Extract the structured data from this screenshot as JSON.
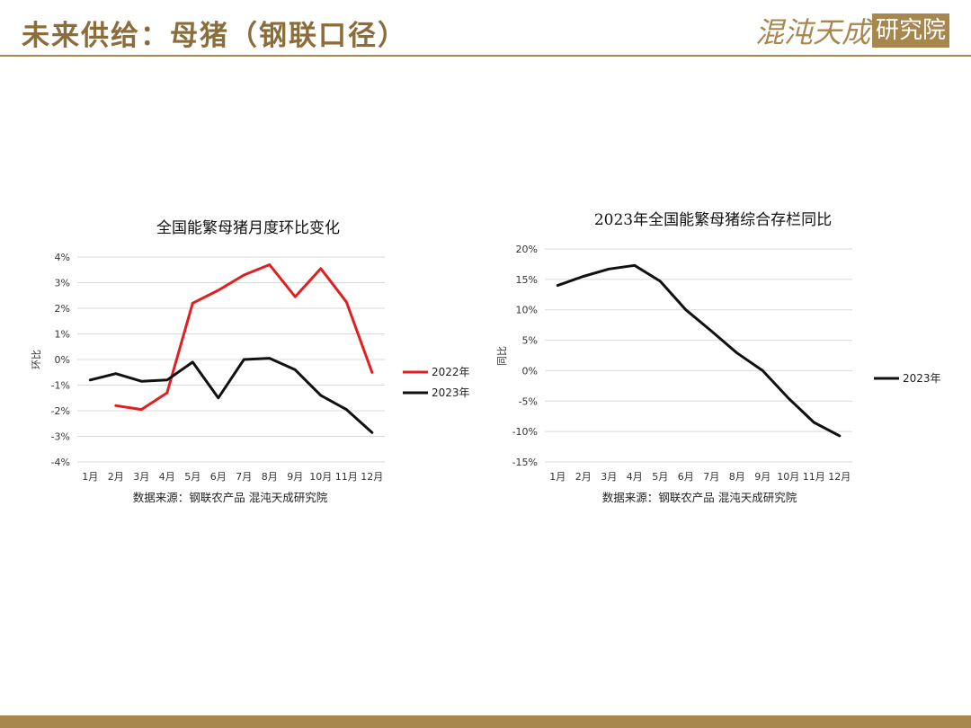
{
  "header": {
    "title": "未来供给：母猪（钢联口径）",
    "brand_name": "混沌天成",
    "brand_box": "研究院"
  },
  "colors": {
    "accent": "#a8874f",
    "series_2022": "#e02020",
    "series_2023": "#111111",
    "grid": "#d9d9d9"
  },
  "chart_data": [
    {
      "type": "line",
      "title": "全国能繁母猪月度环比变化",
      "xlabel": "",
      "ylabel": "环比",
      "categories": [
        "1月",
        "2月",
        "3月",
        "4月",
        "5月",
        "6月",
        "7月",
        "8月",
        "9月",
        "10月",
        "11月",
        "12月"
      ],
      "ylim": [
        -4,
        4
      ],
      "yticks": [
        "-4%",
        "-3%",
        "-2%",
        "-1%",
        "0%",
        "1%",
        "2%",
        "3%",
        "4%"
      ],
      "grid": "horizontal",
      "legend_position": "right",
      "series": [
        {
          "name": "2022年",
          "values": [
            null,
            -1.8,
            -1.95,
            -1.3,
            2.2,
            2.7,
            3.3,
            3.7,
            2.45,
            3.55,
            2.25,
            -0.5
          ]
        },
        {
          "name": "2023年",
          "values": [
            -0.8,
            -0.55,
            -0.85,
            -0.8,
            -0.1,
            -1.5,
            0.0,
            0.05,
            -0.4,
            -1.4,
            -1.95,
            -2.85
          ]
        }
      ],
      "source": "数据来源：钢联农产品 混沌天成研究院"
    },
    {
      "type": "line",
      "title": "2023年全国能繁母猪综合存栏同比",
      "xlabel": "",
      "ylabel": "同比",
      "categories": [
        "1月",
        "2月",
        "3月",
        "4月",
        "5月",
        "6月",
        "7月",
        "8月",
        "9月",
        "10月",
        "11月",
        "12月"
      ],
      "ylim": [
        -15,
        20
      ],
      "yticks": [
        "-15%",
        "-10%",
        "-5%",
        "0%",
        "5%",
        "10%",
        "15%",
        "20%"
      ],
      "grid": "horizontal",
      "legend_position": "right",
      "series": [
        {
          "name": "2023年",
          "values": [
            14.0,
            15.5,
            16.7,
            17.3,
            14.7,
            10.0,
            6.5,
            2.9,
            0.0,
            -4.5,
            -8.5,
            -10.7
          ]
        }
      ],
      "source": "数据来源：钢联农产品 混沌天成研究院"
    }
  ]
}
